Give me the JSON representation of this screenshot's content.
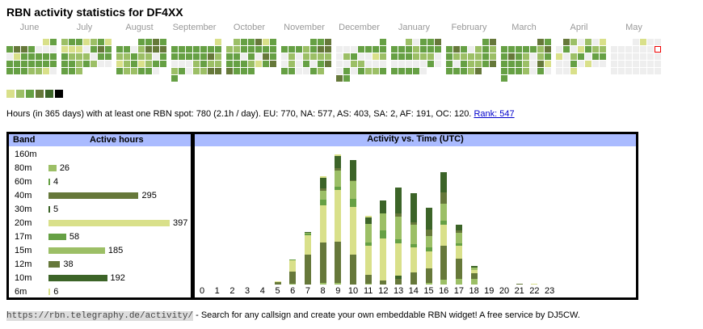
{
  "title": "RBN activity statistics for DF4XX",
  "level_colors": [
    "#eeeeee",
    "#d9e08a",
    "#9cbf66",
    "#66a044",
    "#66783a",
    "#3c6428",
    "#000000"
  ],
  "calendar": [
    {
      "month": "June",
      "weeks": [
        "     13",
        "3443000",
        "0133333",
        "3333333",
        "3332210"
      ]
    },
    {
      "month": "July",
      "weeks": [
        "2331231",
        "1110343",
        "3222033",
        "3323200",
        "332    "
      ]
    },
    {
      "month": "August",
      "weeks": [
        "   3343",
        "3302444",
        "2232203",
        "1231233",
        "322330 "
      ]
    },
    {
      "month": "September",
      "weeks": [
        "      1",
        "3333333",
        "3333342",
        "0002322",
        "2302244",
        "3      "
      ]
    },
    {
      "month": "October",
      "weeks": [
        " 233413",
        "2233333",
        "3303043",
        "3332134",
        "4333   "
      ]
    },
    {
      "month": "November",
      "weeks": [
        "    334",
        "3332344",
        "0202222",
        "0203034",
        "330032 "
      ]
    },
    {
      "month": "December",
      "weeks": [
        "      3",
        "0003333",
        "0230012",
        "0022000",
        "0303223",
        "43     "
      ]
    },
    {
      "month": "January",
      "weeks": [
        "  20334",
        "3332333",
        "3332220",
        "0000030",
        "33330  "
      ]
    },
    {
      "month": "February",
      "weeks": [
        "     34",
        "3430232",
        "3222232",
        "3032234",
        "33324  "
      ]
    },
    {
      "month": "March",
      "weeks": [
        "     43",
        "3333324",
        "3432023",
        "3332041",
        "3332030",
        "3      "
      ]
    },
    {
      "month": "April",
      "weeks": [
        " 420201",
        "0301322",
        "1023033",
        "0030100",
        "001    "
      ]
    },
    {
      "month": "May",
      "weeks": [
        "   0100",
        "000000T",
        "0000000",
        "0000000",
        "0000000"
      ]
    }
  ],
  "summary": {
    "text": "Hours (in 365 days) with at least one RBN spot: 780 (2.1h / day). EU: 770, NA: 577, AS: 403, SA: 2, AF: 191, OC: 120.",
    "rank_link": "Rank: 547"
  },
  "bands": {
    "header_band": "Band",
    "header_hours": "Active hours",
    "max": 397,
    "items": [
      {
        "band": "160m",
        "hours": null,
        "color": "#d9e08a"
      },
      {
        "band": "80m",
        "hours": 26,
        "color": "#9cbf66"
      },
      {
        "band": "60m",
        "hours": 4,
        "color": "#66a044"
      },
      {
        "band": "40m",
        "hours": 295,
        "color": "#66783a"
      },
      {
        "band": "30m",
        "hours": 5,
        "color": "#3c6428"
      },
      {
        "band": "20m",
        "hours": 397,
        "color": "#d9e08a"
      },
      {
        "band": "17m",
        "hours": 58,
        "color": "#66a044"
      },
      {
        "band": "15m",
        "hours": 185,
        "color": "#9cbf66"
      },
      {
        "band": "12m",
        "hours": 38,
        "color": "#66783a"
      },
      {
        "band": "10m",
        "hours": 192,
        "color": "#3c6428"
      },
      {
        "band": "6m",
        "hours": 6,
        "color": "#d9e08a"
      }
    ]
  },
  "chart_data": {
    "type": "bar",
    "title": "Activity vs. Time (UTC)",
    "stacked": true,
    "categories": [
      "0",
      "1",
      "2",
      "3",
      "4",
      "5",
      "6",
      "7",
      "8",
      "9",
      "10",
      "11",
      "12",
      "13",
      "14",
      "15",
      "16",
      "17",
      "18",
      "19",
      "20",
      "21",
      "22",
      "23"
    ],
    "stack_order": [
      "80m",
      "60m",
      "40m",
      "30m",
      "20m",
      "17m",
      "15m",
      "12m",
      "10m",
      "6m"
    ],
    "series_colors": {
      "80m": "#9cbf66",
      "60m": "#66a044",
      "40m": "#66783a",
      "30m": "#3c6428",
      "20m": "#d9e08a",
      "17m": "#66a044",
      "15m": "#9cbf66",
      "12m": "#66783a",
      "10m": "#3c6428",
      "6m": "#d9e08a"
    },
    "values": [
      {},
      {},
      {},
      {},
      {},
      {
        "40m": 3,
        "6m": 1
      },
      {
        "80m": 1,
        "40m": 15,
        "20m": 14,
        "17m": 1
      },
      {
        "40m": 37,
        "20m": 24,
        "17m": 2,
        "15m": 1,
        "10m": 1
      },
      {
        "80m": 2,
        "40m": 50,
        "20m": 46,
        "17m": 7,
        "15m": 11,
        "12m": 3,
        "10m": 13,
        "6m": 2
      },
      {
        "80m": 2,
        "40m": 51,
        "20m": 64,
        "17m": 4,
        "15m": 20,
        "12m": 3,
        "10m": 15,
        "6m": 2
      },
      {
        "40m": 37,
        "20m": 59,
        "17m": 10,
        "15m": 22,
        "12m": 1,
        "10m": 25
      },
      {
        "80m": 1,
        "40m": 11,
        "20m": 36,
        "17m": 4,
        "15m": 23,
        "10m": 8,
        "6m": 2
      },
      {
        "40m": 5,
        "20m": 52,
        "17m": 10,
        "15m": 21,
        "10m": 16
      },
      {
        "40m": 7,
        "30m": 4,
        "20m": 40,
        "17m": 5,
        "15m": 28,
        "12m": 4,
        "10m": 32
      },
      {
        "40m": 15,
        "20m": 31,
        "17m": 4,
        "15m": 24,
        "12m": 3,
        "10m": 36
      },
      {
        "80m": 2,
        "40m": 18,
        "20m": 21,
        "17m": 5,
        "15m": 14,
        "12m": 8,
        "10m": 27
      },
      {
        "80m": 6,
        "40m": 42,
        "20m": 26,
        "17m": 5,
        "15m": 21,
        "12m": 14,
        "10m": 25
      },
      {
        "80m": 7,
        "40m": 25,
        "20m": 16,
        "17m": 3,
        "15m": 13,
        "12m": 3,
        "10m": 7
      },
      {
        "80m": 7,
        "40m": 7,
        "20m": 4,
        "15m": 3,
        "10m": 2
      },
      {},
      {},
      {
        "40m": 1
      },
      {
        "20m": 1
      },
      {}
    ]
  },
  "footer": {
    "url": "https://rbn.telegraphy.de/activity/",
    "text": " - Search for any callsign and create your own embeddable RBN widget! A free service by DJ5CW."
  }
}
